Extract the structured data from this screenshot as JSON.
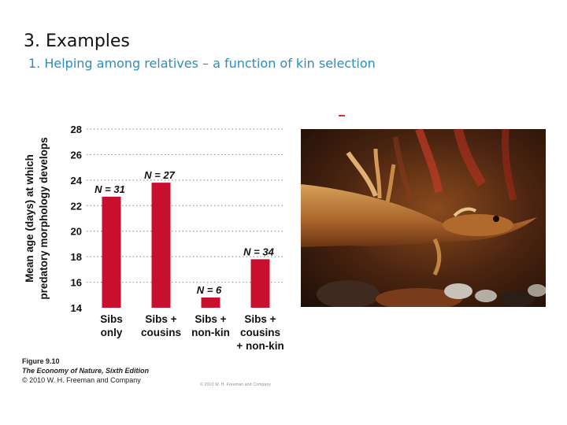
{
  "slide": {
    "title": "3. Examples",
    "subtitle": "1. Helping among relatives – a function of kin selection"
  },
  "colors": {
    "title": "#111111",
    "subtitle": "#2a8fbd",
    "bar": "#c8102e",
    "grid": "#9a9a9a"
  },
  "figure_caption": {
    "number": "Figure 9.10",
    "book": "The Economy of Nature, Sixth Edition",
    "copyright": "© 2010 W. H. Freeman and Company"
  },
  "photo": {
    "description_icon": "salamander-larva-photo",
    "small_copyright": "© 2010 W. H. Freeman and Company"
  },
  "chart_data": {
    "type": "bar",
    "ylabel": [
      "Mean age (days) at which",
      "predatory morphology develops"
    ],
    "ylim": [
      14,
      28
    ],
    "yticks": [
      14,
      16,
      18,
      20,
      22,
      24,
      26,
      28
    ],
    "grid": true,
    "categories": [
      [
        "Sibs",
        "only"
      ],
      [
        "Sibs +",
        "cousins"
      ],
      [
        "Sibs +",
        "non-kin"
      ],
      [
        "Sibs +",
        "cousins",
        "+ non-kin"
      ]
    ],
    "values": [
      22.7,
      23.8,
      14.8,
      17.8
    ],
    "labels": [
      "N = 31",
      "N = 27",
      "N = 6",
      "N = 34"
    ]
  }
}
